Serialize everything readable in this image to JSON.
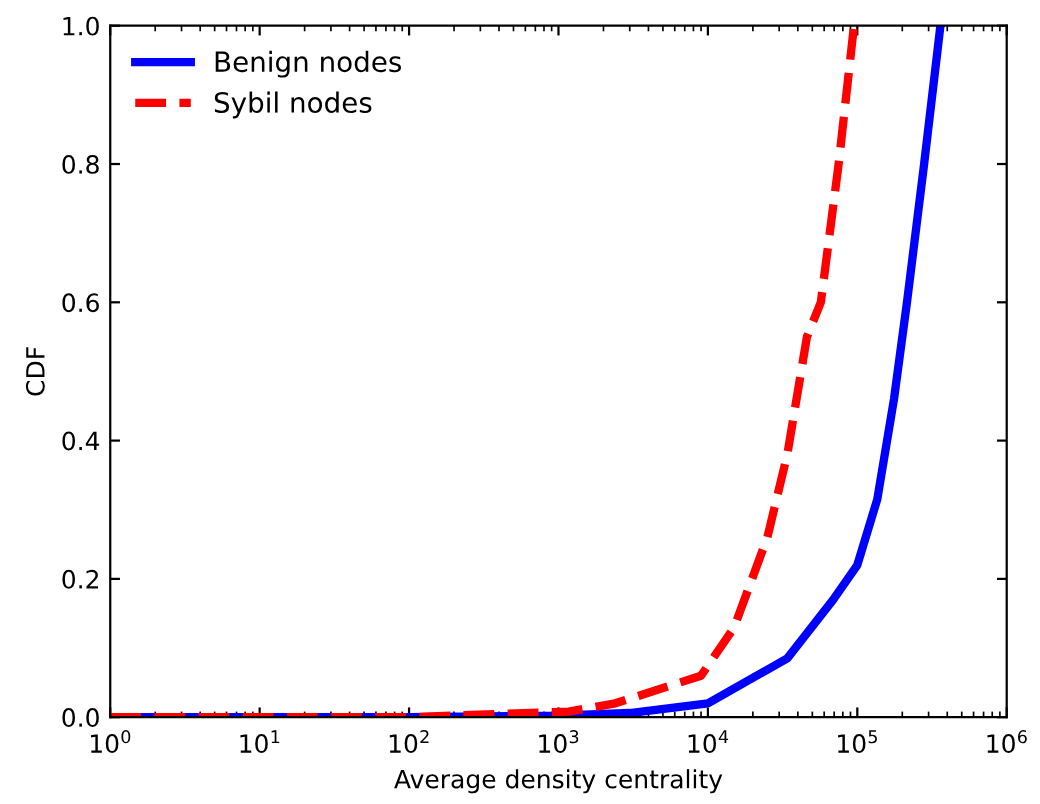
{
  "chart_data": {
    "type": "line",
    "xlabel": "Average density centrality",
    "ylabel": "CDF",
    "log": "x",
    "xlim": [
      1,
      1000000
    ],
    "ylim": [
      0,
      1.0
    ],
    "xticks": [
      {
        "value": 1,
        "label": "10$^{0}$"
      },
      {
        "value": 10,
        "label": "10$^{1}$"
      },
      {
        "value": 100,
        "label": "10$^{2}$"
      },
      {
        "value": 1000,
        "label": "10$^{3}$"
      },
      {
        "value": 10000,
        "label": "10$^{4}$"
      },
      {
        "value": 100000,
        "label": "10$^{5}$"
      },
      {
        "value": 1000000,
        "label": "10$^{6}$"
      }
    ],
    "yticks": [
      {
        "value": 0,
        "label": "0.0"
      },
      0.2,
      0.4,
      0.6,
      0.8,
      {
        "value": 1,
        "label": "1.0"
      }
    ],
    "legend": "top left",
    "grid": false,
    "series": [
      {
        "name": "Benign nodes",
        "color": "#0000ff",
        "line_style": "solid",
        "x": [
          1,
          100,
          1000,
          3000,
          10000,
          34000,
          69000,
          100000,
          136000,
          176000,
          215000,
          280000,
          360000
        ],
        "values": [
          0,
          0,
          0.002,
          0.006,
          0.02,
          0.085,
          0.17,
          0.22,
          0.315,
          0.46,
          0.6,
          0.8,
          1.0
        ]
      },
      {
        "name": "Sybil nodes",
        "color": "#ff0000",
        "line_style": "dashed",
        "x": [
          1,
          100,
          1170,
          2400,
          9000,
          15000,
          25000,
          34000,
          46000,
          57000,
          75000,
          95000
        ],
        "values": [
          0,
          0,
          0.008,
          0.02,
          0.06,
          0.13,
          0.26,
          0.38,
          0.55,
          0.6,
          0.8,
          1.0
        ]
      }
    ]
  }
}
